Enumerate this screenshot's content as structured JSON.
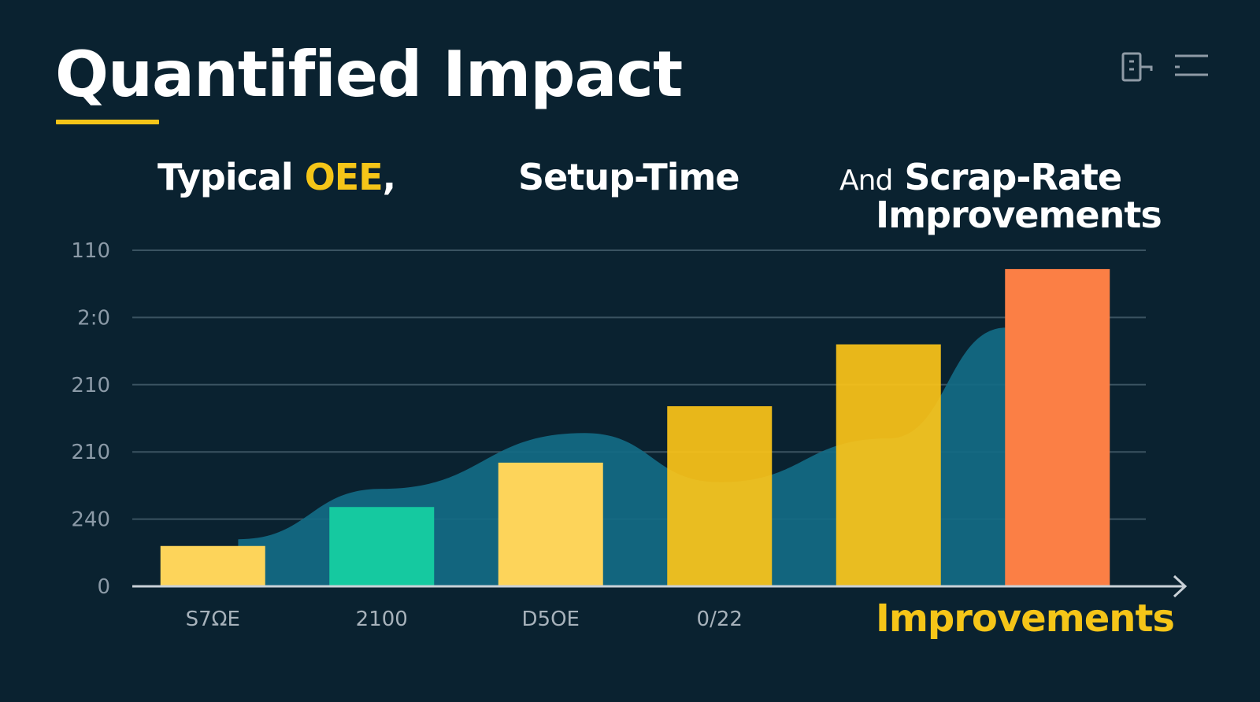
{
  "title": "Quantified Impact",
  "headings": {
    "first_prefix": "Typical ",
    "first_accent": "OEE",
    "first_suffix": ",",
    "second": "Setup-Time",
    "third_prefix": "And",
    "third_main": "Scrap-Rate",
    "third_line2": "Improvements"
  },
  "top_icons": [
    "document-icon",
    "menu-icon"
  ],
  "x_axis_highlight": "Improvements",
  "colors": {
    "background": "#0a2230",
    "accent": "#f5c518",
    "area": "#136b85",
    "bar_yellow_light": "#fdd45a",
    "bar_teal": "#15c9a0",
    "bar_yellow": "#fcc419",
    "bar_orange": "#fb7f45",
    "grid": "#3a5361"
  },
  "chart_data": {
    "type": "bar",
    "categories": [
      "S7ΩE",
      "2100",
      "D5OE",
      "0/22",
      "",
      ""
    ],
    "values": [
      0.6,
      1.18,
      1.84,
      2.68,
      3.6,
      4.72
    ],
    "bar_colors": [
      "#fdd45a",
      "#15c9a0",
      "#fdd45a",
      "#fcc419",
      "#fcc419",
      "#fb7f45"
    ],
    "y_tick_labels": [
      "0",
      "240",
      "210",
      "210",
      "2:0",
      "110"
    ],
    "ylim": [
      0,
      5
    ],
    "area_trend": [
      {
        "x": 0.15,
        "y": 0.7
      },
      {
        "x": 1,
        "y": 1.45
      },
      {
        "x": 2.2,
        "y": 2.28
      },
      {
        "x": 3,
        "y": 1.55
      },
      {
        "x": 4,
        "y": 2.2
      },
      {
        "x": 4.7,
        "y": 3.85
      }
    ],
    "grid": true,
    "xlabel": "",
    "ylabel": ""
  }
}
